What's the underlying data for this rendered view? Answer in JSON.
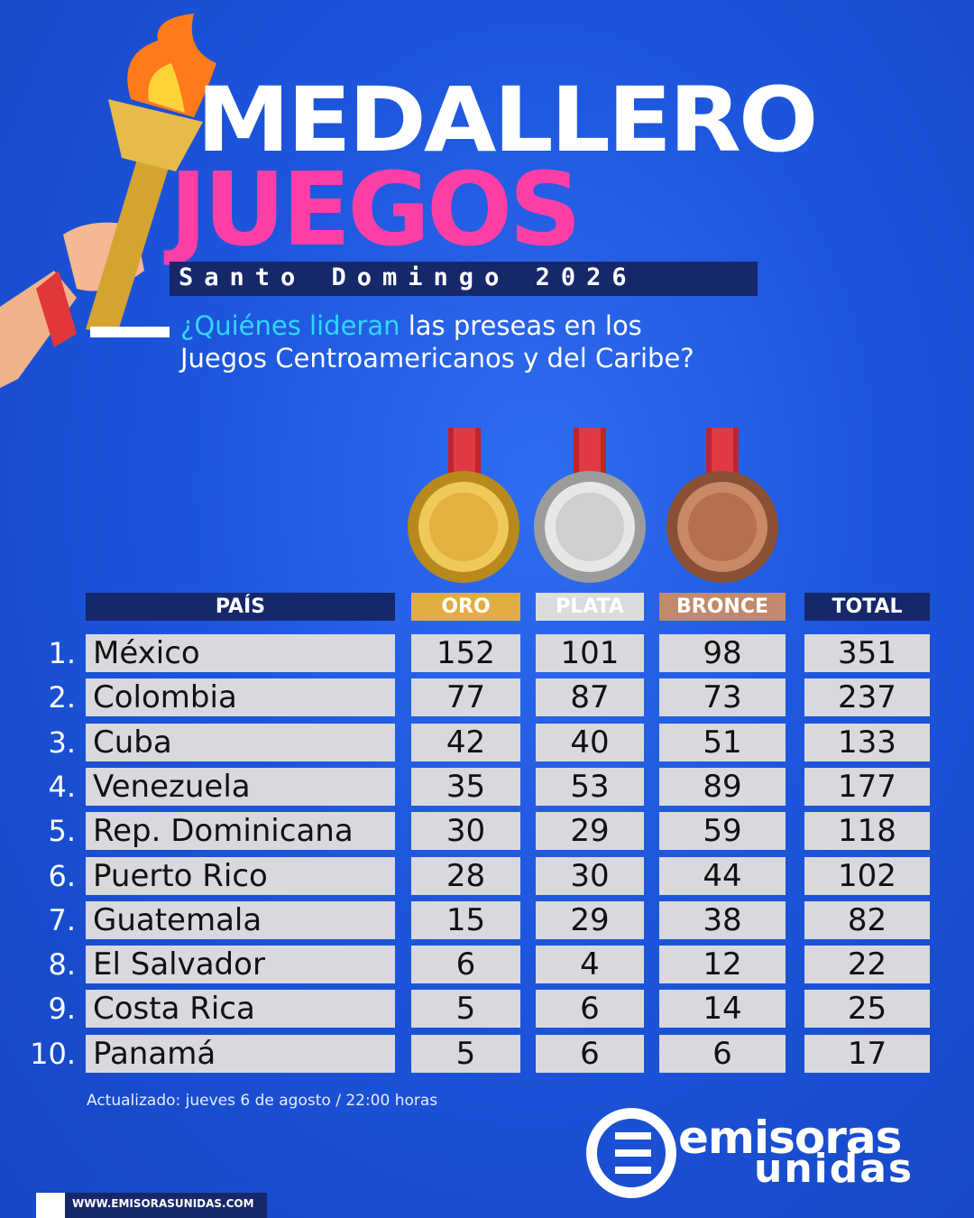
{
  "header": {
    "title_line1": "MEDALLERO",
    "title_line2": "JUEGOS",
    "subtitle": "Santo Domingo 2026",
    "question_highlight": "¿Quiénes lideran",
    "question_rest_line1": "las preseas en los",
    "question_line2": "Juegos Centroamericanos y del Caribe?"
  },
  "table": {
    "columns": [
      "PAÍS",
      "ORO",
      "PLATA",
      "BRONCE",
      "TOTAL"
    ],
    "rows": [
      [
        "1.",
        "México",
        152,
        101,
        98,
        351
      ],
      [
        "2.",
        "Colombia",
        77,
        87,
        73,
        237
      ],
      [
        "3.",
        "Cuba",
        42,
        40,
        51,
        133
      ],
      [
        "4.",
        "Venezuela",
        35,
        53,
        89,
        177
      ],
      [
        "5.",
        "Rep. Dominicana",
        30,
        29,
        59,
        118
      ],
      [
        "6.",
        "Puerto Rico",
        28,
        30,
        44,
        102
      ],
      [
        "7.",
        "Guatemala",
        15,
        29,
        38,
        82
      ],
      [
        "8.",
        "El Salvador",
        6,
        4,
        12,
        22
      ],
      [
        "9.",
        "Costa Rica",
        5,
        6,
        14,
        25
      ],
      [
        "10.",
        "Panamá",
        5,
        6,
        6,
        17
      ]
    ]
  },
  "footer": {
    "note": "Actualizado: jueves 6 de agosto / 22:00 horas",
    "logo_line1": "emisoras",
    "logo_line2": "unidas",
    "website": "WWW.EMISORASUNIDAS.COM"
  }
}
